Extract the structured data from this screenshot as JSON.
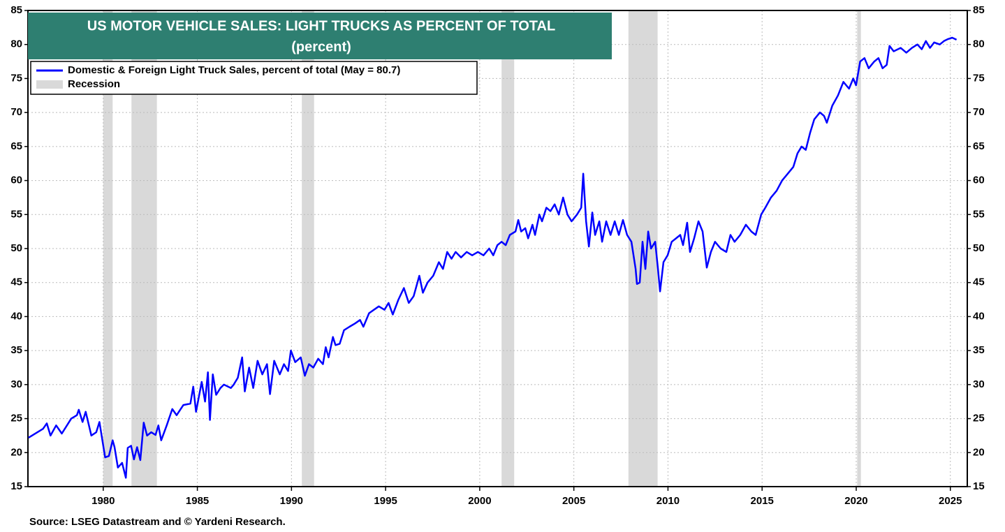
{
  "chart_data": {
    "type": "line",
    "title": "US MOTOR VEHICLE SALES: LIGHT TRUCKS AS PERCENT OF TOTAL",
    "subtitle": "(percent)",
    "source": "Source: LSEG Datastream and © Yardeni Research.",
    "xlim": [
      1976,
      2025.9
    ],
    "xticks": [
      1980,
      1985,
      1990,
      1995,
      2000,
      2005,
      2010,
      2015,
      2020,
      2025
    ],
    "ylim": [
      15,
      85
    ],
    "yticks": [
      15,
      20,
      25,
      30,
      35,
      40,
      45,
      50,
      55,
      60,
      65,
      70,
      75,
      80,
      85
    ],
    "grid": true,
    "recessions": {
      "name": "Recession",
      "color": "#d9d9d9",
      "spans": [
        [
          1980.0,
          1980.5
        ],
        [
          1981.5,
          1982.85
        ],
        [
          1990.55,
          1991.2
        ],
        [
          2001.16,
          2001.83
        ],
        [
          2007.9,
          2009.45
        ],
        [
          2020.05,
          2020.25
        ]
      ]
    },
    "x": [
      1976.03,
      1976.8,
      1977.0,
      1977.2,
      1977.5,
      1977.8,
      1978.3,
      1978.6,
      1978.7,
      1978.9,
      1979.07,
      1979.37,
      1979.63,
      1979.8,
      1980.1,
      1980.3,
      1980.5,
      1980.6,
      1980.78,
      1981.0,
      1981.2,
      1981.3,
      1981.48,
      1981.63,
      1981.8,
      1981.97,
      1982.15,
      1982.33,
      1982.55,
      1982.78,
      1982.93,
      1983.08,
      1983.37,
      1983.67,
      1983.9,
      1984.26,
      1984.63,
      1984.78,
      1984.93,
      1985.23,
      1985.41,
      1985.56,
      1985.67,
      1985.82,
      1986.0,
      1986.23,
      1986.41,
      1986.78,
      1986.93,
      1987.15,
      1987.38,
      1987.52,
      1987.75,
      1987.97,
      1988.2,
      1988.45,
      1988.7,
      1988.86,
      1989.08,
      1989.38,
      1989.6,
      1989.82,
      1989.97,
      1990.2,
      1990.49,
      1990.71,
      1990.93,
      1991.16,
      1991.42,
      1991.67,
      1991.82,
      1991.97,
      1992.2,
      1992.34,
      1992.56,
      1992.79,
      1993.08,
      1993.38,
      1993.64,
      1993.82,
      1994.12,
      1994.38,
      1994.64,
      1994.94,
      1995.16,
      1995.38,
      1995.68,
      1995.97,
      1996.23,
      1996.49,
      1996.79,
      1996.98,
      1997.23,
      1997.53,
      1997.83,
      1998.05,
      1998.27,
      1998.5,
      1998.72,
      1999.01,
      1999.31,
      1999.6,
      1999.9,
      2000.2,
      2000.5,
      2000.72,
      2000.94,
      2001.16,
      2001.38,
      2001.6,
      2001.9,
      2002.05,
      2002.2,
      2002.42,
      2002.57,
      2002.8,
      2002.94,
      2003.17,
      2003.31,
      2003.54,
      2003.76,
      2003.98,
      2004.2,
      2004.43,
      2004.66,
      2004.88,
      2005.17,
      2005.39,
      2005.5,
      2005.65,
      2005.8,
      2005.98,
      2006.13,
      2006.35,
      2006.5,
      2006.72,
      2006.95,
      2007.17,
      2007.39,
      2007.61,
      2007.83,
      2008.06,
      2008.28,
      2008.35,
      2008.5,
      2008.65,
      2008.8,
      2008.95,
      2009.1,
      2009.32,
      2009.47,
      2009.58,
      2009.76,
      2009.98,
      2010.2,
      2010.43,
      2010.65,
      2010.8,
      2011.02,
      2011.17,
      2011.39,
      2011.62,
      2011.84,
      2012.06,
      2012.28,
      2012.5,
      2012.8,
      2013.1,
      2013.32,
      2013.54,
      2013.84,
      2014.14,
      2014.43,
      2014.66,
      2014.95,
      2015.17,
      2015.47,
      2015.77,
      2016.06,
      2016.36,
      2016.66,
      2016.88,
      2017.1,
      2017.32,
      2017.55,
      2017.77,
      2018.07,
      2018.29,
      2018.44,
      2018.73,
      2019.03,
      2019.32,
      2019.62,
      2019.84,
      2019.99,
      2020.21,
      2020.44,
      2020.66,
      2020.96,
      2021.18,
      2021.4,
      2021.62,
      2021.77,
      2021.99,
      2022.36,
      2022.66,
      2022.96,
      2023.25,
      2023.48,
      2023.7,
      2023.92,
      2024.14,
      2024.44,
      2024.66,
      2024.88,
      2025.1,
      2025.33
    ],
    "series": [
      {
        "name": "Domestic & Foreign Light Truck Sales, percent of total (May = 80.7)",
        "color": "#0000ff",
        "values": [
          22.2,
          23.5,
          24.3,
          22.5,
          24.0,
          22.8,
          25.0,
          25.5,
          26.3,
          24.5,
          26.0,
          22.5,
          23.0,
          24.5,
          19.3,
          19.5,
          21.8,
          20.8,
          17.8,
          18.5,
          16.3,
          20.7,
          21.0,
          19.0,
          20.8,
          18.9,
          24.4,
          22.5,
          23.0,
          22.6,
          24.0,
          21.8,
          24.0,
          26.4,
          25.5,
          27.0,
          27.2,
          29.7,
          26.0,
          30.4,
          27.5,
          31.8,
          24.8,
          31.5,
          28.5,
          29.5,
          30.0,
          29.5,
          30.0,
          31.0,
          34.0,
          29.0,
          32.5,
          29.5,
          33.5,
          31.5,
          33.0,
          28.6,
          33.5,
          31.5,
          33.0,
          32.0,
          35.0,
          33.3,
          34.0,
          31.3,
          33.0,
          32.5,
          33.8,
          33.0,
          35.5,
          34.0,
          37.0,
          35.8,
          36.0,
          38.0,
          38.5,
          39.0,
          39.5,
          38.5,
          40.5,
          41.0,
          41.5,
          41.0,
          42.0,
          40.3,
          42.5,
          44.2,
          42.0,
          43.0,
          46.0,
          43.5,
          45.0,
          46.0,
          48.0,
          47.0,
          49.5,
          48.5,
          49.5,
          48.7,
          49.5,
          49.0,
          49.5,
          49.0,
          50.0,
          49.0,
          50.5,
          51.0,
          50.5,
          52.0,
          52.5,
          54.2,
          52.5,
          53.0,
          51.5,
          53.5,
          52.0,
          55.0,
          54.0,
          56.0,
          55.5,
          56.5,
          55.0,
          57.5,
          55.0,
          54.0,
          55.0,
          56.0,
          61.0,
          54.0,
          50.3,
          55.3,
          52.0,
          54.0,
          51.0,
          54.0,
          52.0,
          54.0,
          52.0,
          54.2,
          52.0,
          51.0,
          47.0,
          44.8,
          45.0,
          51.0,
          47.0,
          52.5,
          50.0,
          51.0,
          47.0,
          43.7,
          48.0,
          49.0,
          51.0,
          51.5,
          52.0,
          50.5,
          53.8,
          49.5,
          51.5,
          54.0,
          52.5,
          47.2,
          49.5,
          51.0,
          50.0,
          49.5,
          52.0,
          51.0,
          52.0,
          53.5,
          52.5,
          52.0,
          55.0,
          56.0,
          57.5,
          58.5,
          60.0,
          61.0,
          62.0,
          64.0,
          65.0,
          64.5,
          67.0,
          69.0,
          70.0,
          69.5,
          68.5,
          71.0,
          72.5,
          74.5,
          73.5,
          75.0,
          74.0,
          77.5,
          78.0,
          76.5,
          77.5,
          78.0,
          76.5,
          77.0,
          79.8,
          79.0,
          79.5,
          78.8,
          79.5,
          80.0,
          79.3,
          80.5,
          79.5,
          80.3,
          80.0,
          80.5,
          80.8,
          81.0,
          80.7
        ]
      }
    ]
  }
}
